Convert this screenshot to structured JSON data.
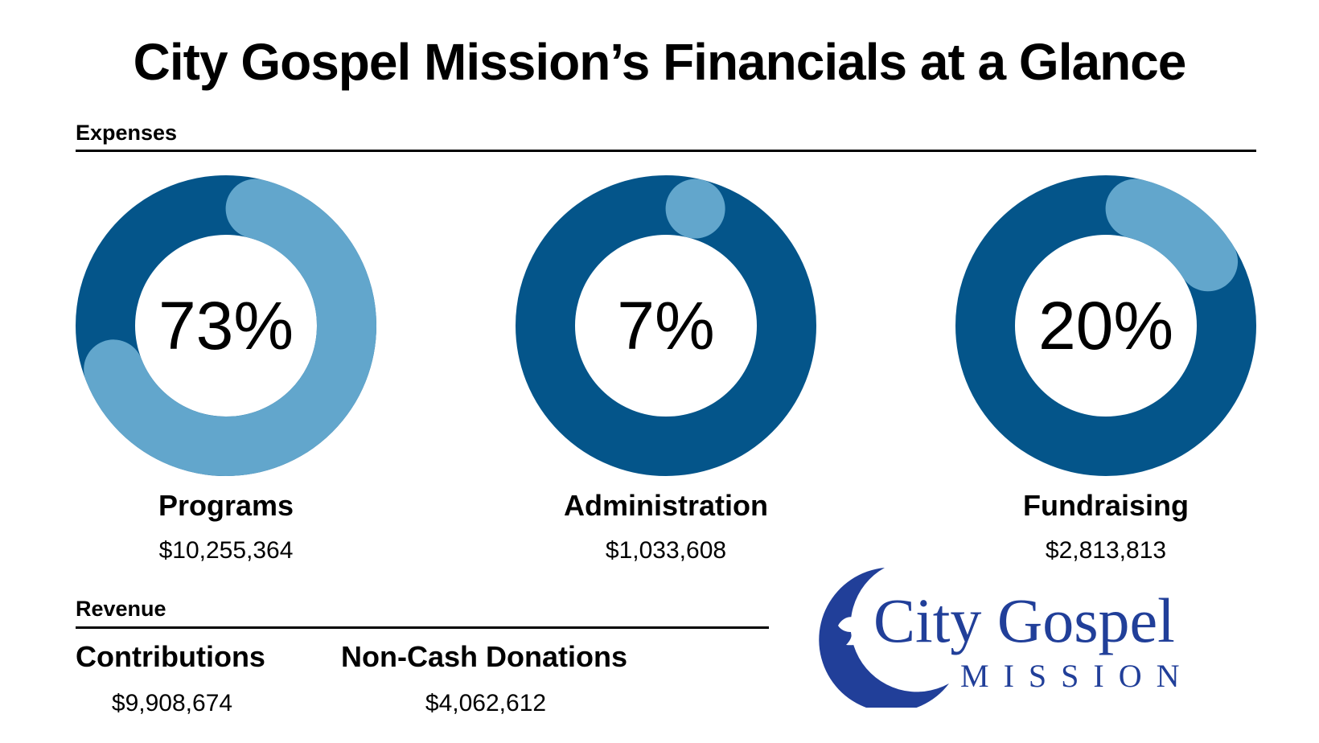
{
  "title": "City Gospel Mission’s Financials at a Glance",
  "expenses": {
    "label": "Expenses",
    "items": [
      {
        "name": "Programs",
        "percent_label": "73%",
        "amount": "$10,255,364"
      },
      {
        "name": "Administration",
        "percent_label": "7%",
        "amount": "$1,033,608"
      },
      {
        "name": "Fundraising",
        "percent_label": "20%",
        "amount": "$2,813,813"
      }
    ]
  },
  "revenue": {
    "label": "Revenue",
    "items": [
      {
        "name": "Contributions",
        "amount": "$9,908,674"
      },
      {
        "name": "Non-Cash Donations",
        "amount": "$4,062,612"
      }
    ]
  },
  "logo": {
    "line1": "City Gospel",
    "line2": "MISSION"
  },
  "colors": {
    "dark_blue": "#04558a",
    "light_blue": "#62a6cc",
    "logo_blue": "#213f99"
  },
  "chart_data": {
    "type": "pie",
    "title": "Expenses",
    "categories": [
      "Programs",
      "Administration",
      "Fundraising"
    ],
    "values": [
      73,
      7,
      20
    ],
    "amounts": [
      10255364,
      1033608,
      2813813
    ]
  }
}
